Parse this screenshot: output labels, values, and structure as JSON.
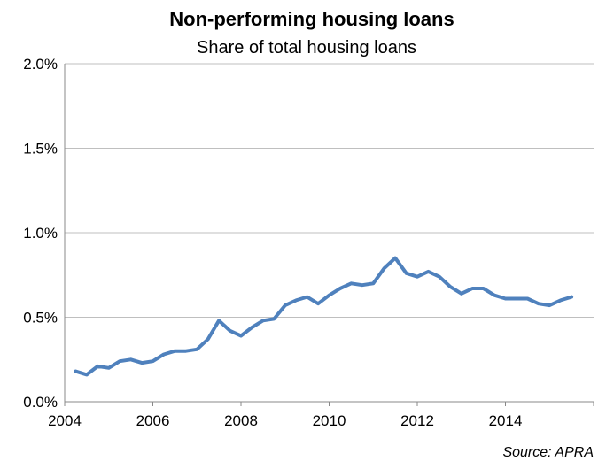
{
  "chart_data": {
    "type": "line",
    "title": "Non-performing housing loans",
    "subtitle": "Share of total housing loans",
    "source": "Source: APRA",
    "xlabel": "",
    "ylabel": "",
    "xlim": [
      2004,
      2016
    ],
    "ylim": [
      0,
      2.0
    ],
    "x_ticks": [
      2004,
      2006,
      2008,
      2010,
      2012,
      2014
    ],
    "x_tick_labels": [
      "2004",
      "2006",
      "2008",
      "2010",
      "2012",
      "2014"
    ],
    "y_ticks": [
      0,
      0.5,
      1.0,
      1.5,
      2.0
    ],
    "y_tick_labels": [
      "0.0%",
      "0.5%",
      "1.0%",
      "1.5%",
      "2.0%"
    ],
    "grid": "horizontal",
    "legend": "none",
    "series": [
      {
        "color": "#4f81bd",
        "x": [
          2004.25,
          2004.5,
          2004.75,
          2005.0,
          2005.25,
          2005.5,
          2005.75,
          2006.0,
          2006.25,
          2006.5,
          2006.75,
          2007.0,
          2007.25,
          2007.5,
          2007.75,
          2008.0,
          2008.25,
          2008.5,
          2008.75,
          2009.0,
          2009.25,
          2009.5,
          2009.75,
          2010.0,
          2010.25,
          2010.5,
          2010.75,
          2011.0,
          2011.25,
          2011.5,
          2011.75,
          2012.0,
          2012.25,
          2012.5,
          2012.75,
          2013.0,
          2013.25,
          2013.5,
          2013.75,
          2014.0,
          2014.25,
          2014.5,
          2014.75,
          2015.0,
          2015.25,
          2015.5
        ],
        "y": [
          0.18,
          0.16,
          0.21,
          0.2,
          0.24,
          0.25,
          0.23,
          0.24,
          0.28,
          0.3,
          0.3,
          0.31,
          0.37,
          0.48,
          0.42,
          0.39,
          0.44,
          0.48,
          0.49,
          0.57,
          0.6,
          0.62,
          0.58,
          0.63,
          0.67,
          0.7,
          0.69,
          0.7,
          0.79,
          0.85,
          0.76,
          0.74,
          0.77,
          0.74,
          0.68,
          0.64,
          0.67,
          0.67,
          0.63,
          0.61,
          0.61,
          0.61,
          0.58,
          0.57,
          0.6,
          0.62
        ]
      }
    ]
  }
}
